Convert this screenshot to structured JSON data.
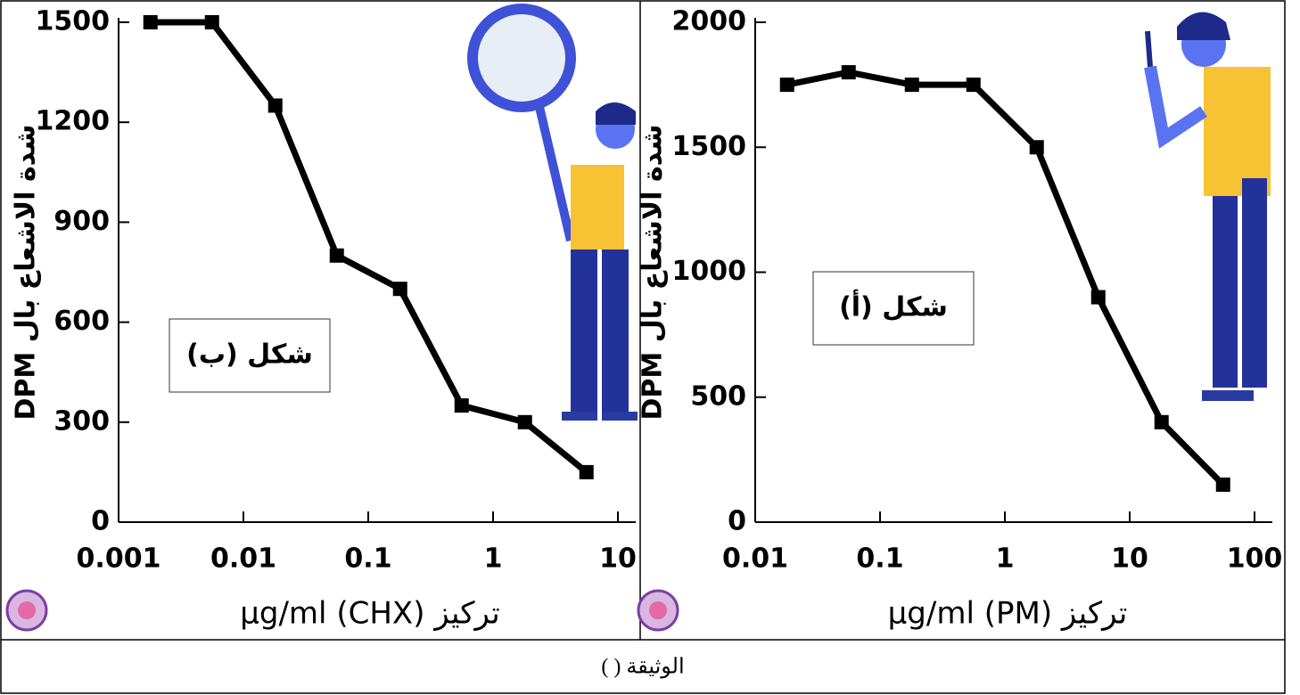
{
  "chart_data": [
    {
      "type": "line",
      "annotation": "شكل (ب)",
      "y_label": "شدة الاشعاع بال DPM",
      "x_label": "تركيز (CHX) µg/ml",
      "xscale": "log",
      "xlim": [
        0.001,
        10
      ],
      "xticks": [
        0.001,
        0.01,
        0.1,
        1,
        10
      ],
      "ylim": [
        0,
        1500
      ],
      "yticks": [
        0,
        300,
        600,
        900,
        1200,
        1500
      ],
      "series": [
        {
          "color": "#000000",
          "x": [
            0.0018,
            0.0056,
            0.018,
            0.056,
            0.18,
            0.56,
            1.8,
            5.6
          ],
          "values": [
            1500,
            1500,
            1250,
            800,
            700,
            350,
            300,
            150
          ]
        }
      ]
    },
    {
      "type": "line",
      "annotation": "شكل (أ)",
      "y_label": "شدة الاشعاع بال DPM",
      "x_label": "تركيز (PM) µg/ml",
      "xscale": "log",
      "xlim": [
        0.01,
        100
      ],
      "xticks": [
        0.01,
        0.1,
        1,
        10,
        100
      ],
      "ylim": [
        0,
        2000
      ],
      "yticks": [
        0,
        500,
        1000,
        1500,
        2000
      ],
      "series": [
        {
          "color": "#000000",
          "x": [
            0.018,
            0.056,
            0.18,
            0.56,
            1.8,
            5.6,
            18,
            56
          ],
          "values": [
            1750,
            1800,
            1750,
            1750,
            1500,
            900,
            400,
            150
          ]
        }
      ]
    }
  ],
  "footer": "الوثيقة ( )"
}
